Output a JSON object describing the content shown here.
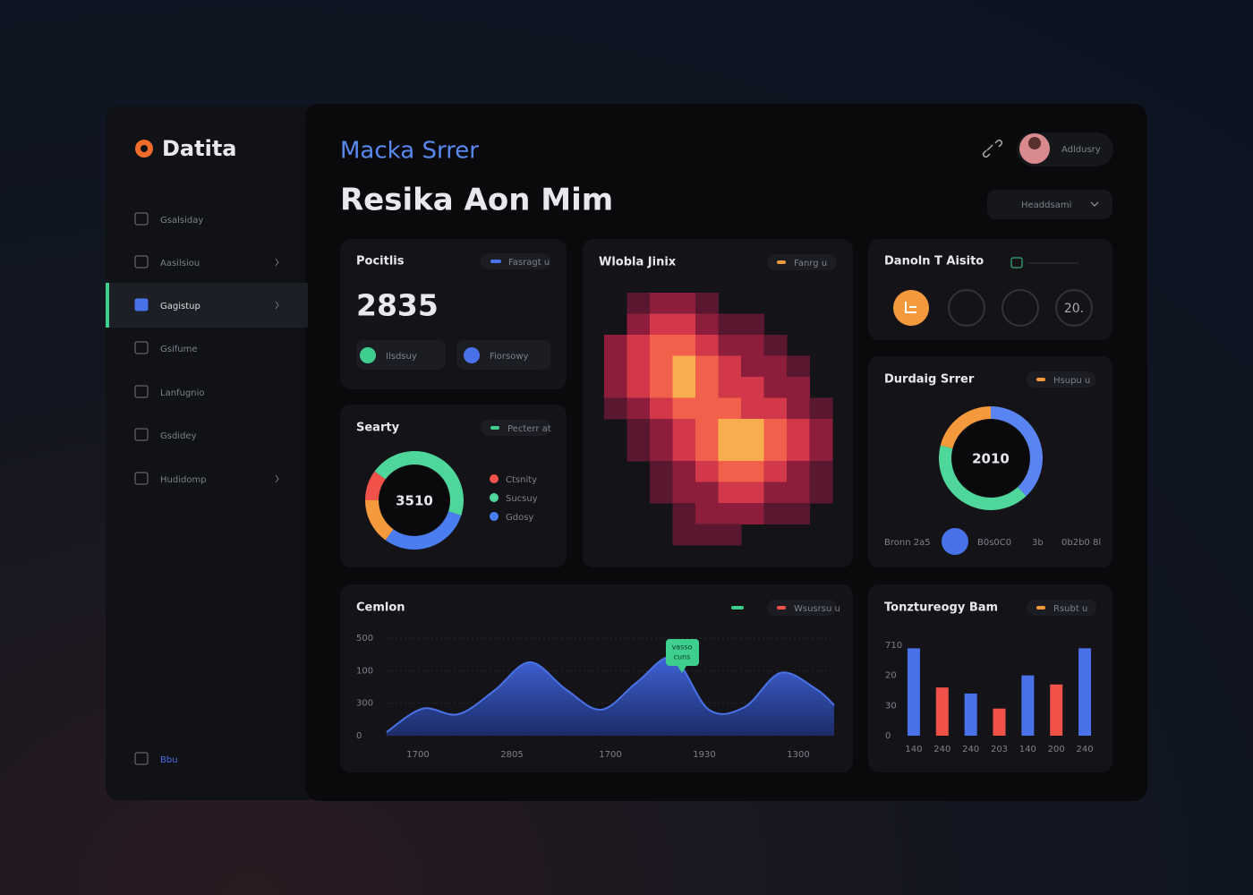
{
  "brand": "Datita",
  "nav": [
    "Gsalsiday",
    "Aasilsiou",
    "Gagistup",
    "Gsifume",
    "Lanfugnio",
    "Gsdidey",
    "Hudidomp",
    "Bbu"
  ],
  "header": {
    "subtitle": "Macka Srrer",
    "title": "Resika Aon Mim",
    "user": "Adldusry",
    "dropdown": "Headdsami"
  },
  "stat_card": {
    "title": "Pocitlis",
    "badge": "Fasragt u",
    "value": 2835,
    "buttons": [
      "Ilsdsuy",
      "Fiorsowy"
    ]
  },
  "icon_card": {
    "title": "Danoln T Aisito",
    "icon_text": "20."
  },
  "chart_data": [
    {
      "type": "donut",
      "title": "Searty",
      "badge": "Pecterr at",
      "center_label": "3510",
      "categories": [
        "Ctsnity",
        "Sucsuy",
        "Gdosy",
        null
      ],
      "values": [
        10,
        45,
        30,
        15
      ],
      "colors": [
        "#f0524a",
        "#4fd69a",
        "#4a7ef0",
        "#f59a3c"
      ]
    },
    {
      "type": "heatmap",
      "title": "Wlobla Jinix",
      "badge": "Fanrg u",
      "colorscale": [
        "#5a1830",
        "#8c1e3c",
        "#d2384a",
        "#f0604a",
        "#f8ad4e"
      ],
      "z": [
        [
          0,
          1,
          2,
          2,
          1,
          0,
          0,
          0,
          0,
          0
        ],
        [
          0,
          2,
          3,
          3,
          2,
          1,
          1,
          0,
          0,
          0
        ],
        [
          2,
          3,
          4,
          4,
          3,
          2,
          2,
          1,
          0,
          0
        ],
        [
          2,
          3,
          4,
          5,
          4,
          3,
          2,
          2,
          1,
          0
        ],
        [
          2,
          3,
          4,
          5,
          4,
          3,
          3,
          2,
          2,
          0
        ],
        [
          1,
          2,
          3,
          4,
          4,
          4,
          3,
          3,
          2,
          1
        ],
        [
          0,
          1,
          2,
          3,
          4,
          5,
          5,
          4,
          3,
          2
        ],
        [
          0,
          1,
          2,
          3,
          4,
          5,
          5,
          4,
          3,
          2
        ],
        [
          0,
          0,
          1,
          2,
          3,
          4,
          4,
          3,
          2,
          1
        ],
        [
          0,
          0,
          1,
          2,
          2,
          3,
          3,
          2,
          2,
          1
        ],
        [
          0,
          0,
          0,
          1,
          2,
          2,
          2,
          1,
          1,
          0
        ],
        [
          0,
          0,
          0,
          1,
          1,
          1,
          0,
          0,
          0,
          0
        ]
      ]
    },
    {
      "type": "donut",
      "title": "Durdaig Srrer",
      "badge": "Hsupu u",
      "center_label": "2010",
      "values": [
        38,
        41,
        21
      ],
      "colors": [
        "#5a84f2",
        "#4fd69a",
        "#f59a3c"
      ],
      "footer": [
        "Bronn 2a5",
        "B0s0C0",
        "3b",
        "0b2b0 8l"
      ]
    },
    {
      "type": "area",
      "title": "Cemlon",
      "badge": "Wsusrsu u",
      "color": "#4a72e8",
      "annotation": [
        "vasso",
        "cuns"
      ],
      "grid": true,
      "x": [
        0,
        8,
        16,
        24,
        32,
        40,
        48,
        56,
        64,
        72,
        80,
        88,
        96,
        100
      ],
      "values": [
        11,
        83,
        66,
        138,
        226,
        143,
        80,
        165,
        239,
        80,
        88,
        193,
        143,
        94
      ],
      "xlim": [
        0,
        100
      ],
      "ylim": [
        0,
        300
      ],
      "xticks": [
        {
          "value": 7,
          "label": "1700"
        },
        {
          "value": 28,
          "label": "2805"
        },
        {
          "value": 50,
          "label": "1700"
        },
        {
          "value": 71,
          "label": "1930"
        },
        {
          "value": 92,
          "label": "1300"
        }
      ],
      "yticks": [
        0,
        {
          "value": 100,
          "label": "300"
        },
        {
          "value": 200,
          "label": "100"
        },
        {
          "value": 300,
          "label": "500"
        }
      ]
    },
    {
      "type": "bar",
      "title": "Tonztureogy Bam",
      "badge": "Rsubt u",
      "categories": [
        "140",
        "240",
        "240",
        "203",
        "140",
        "200",
        "240"
      ],
      "values": [
        29,
        16,
        14,
        9,
        20,
        17,
        29
      ],
      "colors": [
        "#4a72e8",
        "#f0524a",
        "#4a72e8",
        "#f0524a",
        "#4a72e8",
        "#f0524a",
        "#4a72e8"
      ],
      "ylim": [
        0,
        30
      ],
      "yticks": [
        0,
        {
          "value": 10,
          "label": "30"
        },
        20,
        {
          "value": 30,
          "label": "710"
        }
      ]
    }
  ]
}
